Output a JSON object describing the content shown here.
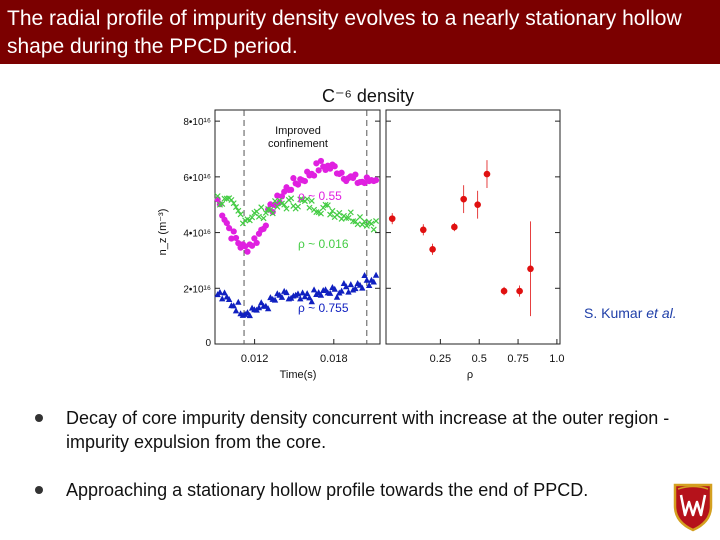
{
  "slide": {
    "title": "The radial profile of impurity density evolves to a nearly stationary hollow shape during the PPCD period.",
    "credit_name": "S. Kumar ",
    "credit_etal": "et al.",
    "bullets": [
      "Decay of core impurity density concurrent with increase at the outer region - impurity expulsion from the core.",
      "Approaching a stationary hollow profile towards the end of PPCD."
    ],
    "logo_icon": "university-crest-icon",
    "colors": {
      "title_bg": "#7b0000",
      "magenta": "#e020e0",
      "green": "#44cc44",
      "blue": "#1020c0",
      "red": "#e01010",
      "credit": "#1f3fa8"
    }
  },
  "chart_data": [
    {
      "type": "scatter",
      "title": "C⁻⁶ density",
      "xlabel": "Time(s)",
      "ylabel": "n_z (m⁻³)",
      "xlim": [
        0.009,
        0.0215
      ],
      "ylim": [
        0,
        8.4e+16
      ],
      "x_ticks": [
        {
          "v": 0.012,
          "label": "0.012"
        },
        {
          "v": 0.018,
          "label": "0.018"
        }
      ],
      "y_ticks": [
        {
          "v": 0,
          "label": "0"
        },
        {
          "v": 2e+16,
          "label": "2•10¹⁶"
        },
        {
          "v": 4e+16,
          "label": "4•10¹⁶"
        },
        {
          "v": 6e+16,
          "label": "6•10¹⁶"
        },
        {
          "v": 8e+16,
          "label": "8•10¹⁶"
        }
      ],
      "annotation": {
        "line1": "Improved",
        "line2": "confinement",
        "x_start": 0.0112,
        "x_end": 0.0205
      },
      "series": [
        {
          "name": "ρ ~ 0.55",
          "marker": "circle",
          "color": "#e020e0",
          "knots_x": [
            0.0092,
            0.0102,
            0.0112,
            0.0122,
            0.0132,
            0.0145,
            0.0158,
            0.017,
            0.0182,
            0.0194,
            0.0204,
            0.0212
          ],
          "knots_y": [
            5.2e+16,
            4e+16,
            3.4e+16,
            3.8e+16,
            4.8e+16,
            5.6e+16,
            6e+16,
            6.4e+16,
            6.3e+16,
            5.9e+16,
            5.8e+16,
            6e+16
          ]
        },
        {
          "name": "ρ ~ 0.016",
          "marker": "x",
          "color": "#44cc44",
          "knots_x": [
            0.0092,
            0.0102,
            0.0112,
            0.0125,
            0.014,
            0.0155,
            0.017,
            0.0185,
            0.02,
            0.0212
          ],
          "knots_y": [
            5.2e+16,
            5e+16,
            4.5e+16,
            4.7e+16,
            5e+16,
            5.1e+16,
            4.9e+16,
            4.7e+16,
            4.5e+16,
            4.3e+16
          ]
        },
        {
          "name": "ρ ~ 0.755",
          "marker": "triangle",
          "color": "#1020c0",
          "knots_x": [
            0.0092,
            0.0102,
            0.0112,
            0.0125,
            0.014,
            0.0155,
            0.017,
            0.0185,
            0.02,
            0.0212
          ],
          "knots_y": [
            1.8e+16,
            1.5e+16,
            1.2e+16,
            1.3e+16,
            1.7e+16,
            1.6e+16,
            1.8e+16,
            1.9e+16,
            2.2e+16,
            2.4e+16
          ]
        }
      ]
    },
    {
      "type": "scatter",
      "xlabel": "ρ",
      "xlim": [
        -0.1,
        1.02
      ],
      "ylim": [
        0,
        8.4e+16
      ],
      "x_ticks": [
        {
          "v": 0.25,
          "label": "0.25"
        },
        {
          "v": 0.5,
          "label": "0.5"
        },
        {
          "v": 0.75,
          "label": "0.75"
        },
        {
          "v": 1.0,
          "label": "1.0"
        }
      ],
      "points": [
        {
          "x": -0.06,
          "y": 4.5e+16,
          "err": 2000000000000000.0
        },
        {
          "x": 0.14,
          "y": 4.1e+16,
          "err": 2000000000000000.0
        },
        {
          "x": 0.2,
          "y": 3.4e+16,
          "err": 2000000000000000.0
        },
        {
          "x": 0.34,
          "y": 4.2e+16,
          "err": 1500000000000000.0
        },
        {
          "x": 0.4,
          "y": 5.2e+16,
          "err": 5000000000000000.0
        },
        {
          "x": 0.49,
          "y": 5e+16,
          "err": 5000000000000000.0
        },
        {
          "x": 0.55,
          "y": 6.1e+16,
          "err": 5000000000000000.0
        },
        {
          "x": 0.66,
          "y": 1.9e+16,
          "err": 1500000000000000.0
        },
        {
          "x": 0.76,
          "y": 1.9e+16,
          "err": 2000000000000000.0
        },
        {
          "x": 0.83,
          "y": 2.7e+16,
          "err": 1.7e+16
        }
      ]
    }
  ]
}
